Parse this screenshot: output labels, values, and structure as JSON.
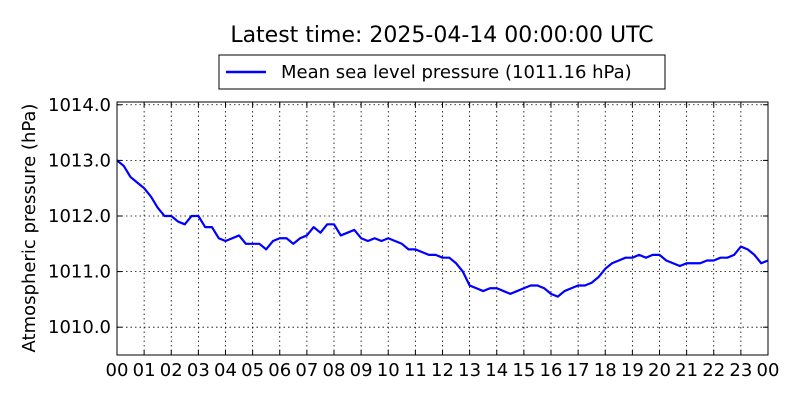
{
  "chart_data": {
    "type": "line",
    "title": "Latest time: 2025-04-14 00:00:00 UTC",
    "xlabel": "",
    "ylabel": "Atmospheric pressure (hPa)",
    "ylim": [
      1009.5,
      1014.05
    ],
    "xlim": [
      0,
      24
    ],
    "yticks": [
      "1010.0",
      "1011.0",
      "1012.0",
      "1013.0",
      "1014.0"
    ],
    "ytick_values": [
      1010,
      1011,
      1012,
      1013,
      1014
    ],
    "xticks": [
      "00",
      "01",
      "02",
      "03",
      "04",
      "05",
      "06",
      "07",
      "08",
      "09",
      "10",
      "11",
      "12",
      "13",
      "14",
      "15",
      "16",
      "17",
      "18",
      "19",
      "20",
      "21",
      "22",
      "23",
      "00"
    ],
    "grid": true,
    "legend_placement": "top-center",
    "series": [
      {
        "name": "Mean sea level pressure (1011.16 hPa)",
        "color": "#0000ff",
        "x": [
          0,
          0.25,
          0.5,
          0.75,
          1,
          1.25,
          1.5,
          1.75,
          2,
          2.25,
          2.5,
          2.75,
          3,
          3.25,
          3.5,
          3.75,
          4,
          4.25,
          4.5,
          4.75,
          5,
          5.25,
          5.5,
          5.75,
          6,
          6.25,
          6.5,
          6.75,
          7,
          7.25,
          7.5,
          7.75,
          8,
          8.25,
          8.5,
          8.75,
          9,
          9.25,
          9.5,
          9.75,
          10,
          10.25,
          10.5,
          10.75,
          11,
          11.25,
          11.5,
          11.75,
          12,
          12.25,
          12.5,
          12.75,
          13,
          13.25,
          13.5,
          13.75,
          14,
          14.25,
          14.5,
          14.75,
          15,
          15.25,
          15.5,
          15.75,
          16,
          16.25,
          16.5,
          16.75,
          17,
          17.25,
          17.5,
          17.75,
          18,
          18.25,
          18.5,
          18.75,
          19,
          19.25,
          19.5,
          19.75,
          20,
          20.25,
          20.5,
          20.75,
          21,
          21.25,
          21.5,
          21.75,
          22,
          22.25,
          22.5,
          22.75,
          23,
          23.25,
          23.5,
          23.75,
          24
        ],
        "values": [
          1013.0,
          1012.9,
          1012.7,
          1012.6,
          1012.5,
          1012.35,
          1012.15,
          1012.0,
          1012.0,
          1011.9,
          1011.85,
          1012.0,
          1012.0,
          1011.8,
          1011.8,
          1011.6,
          1011.55,
          1011.6,
          1011.65,
          1011.5,
          1011.5,
          1011.5,
          1011.4,
          1011.55,
          1011.6,
          1011.6,
          1011.5,
          1011.6,
          1011.65,
          1011.8,
          1011.7,
          1011.85,
          1011.85,
          1011.65,
          1011.7,
          1011.75,
          1011.6,
          1011.55,
          1011.6,
          1011.55,
          1011.6,
          1011.55,
          1011.5,
          1011.4,
          1011.4,
          1011.35,
          1011.3,
          1011.3,
          1011.25,
          1011.25,
          1011.15,
          1011.0,
          1010.75,
          1010.7,
          1010.65,
          1010.7,
          1010.7,
          1010.65,
          1010.6,
          1010.65,
          1010.7,
          1010.75,
          1010.75,
          1010.7,
          1010.6,
          1010.55,
          1010.65,
          1010.7,
          1010.75,
          1010.75,
          1010.8,
          1010.9,
          1011.05,
          1011.15,
          1011.2,
          1011.25,
          1011.25,
          1011.3,
          1011.25,
          1011.3,
          1011.3,
          1011.2,
          1011.15,
          1011.1,
          1011.15,
          1011.15,
          1011.15,
          1011.2,
          1011.2,
          1011.25,
          1011.25,
          1011.3,
          1011.45,
          1011.4,
          1011.3,
          1011.15,
          1011.2
        ]
      }
    ]
  }
}
